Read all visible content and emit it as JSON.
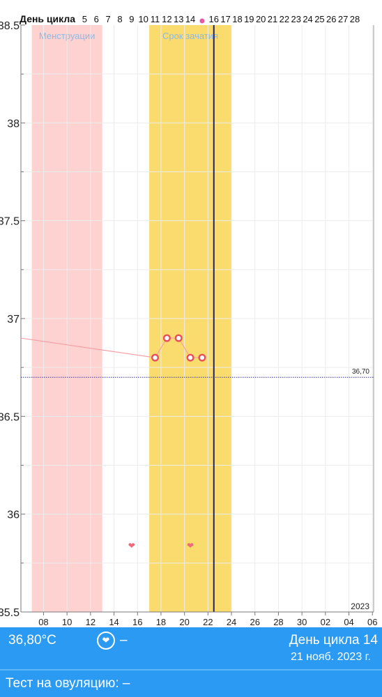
{
  "chart_data": {
    "type": "line",
    "cycle_header": {
      "label": "День цикла",
      "days": [
        "5",
        "6",
        "7",
        "8",
        "9",
        "10",
        "11",
        "12",
        "13",
        "14",
        "",
        "16",
        "17",
        "18",
        "19",
        "20",
        "21",
        "22",
        "23",
        "24",
        "25",
        "26",
        "27",
        "28"
      ]
    },
    "ylim": [
      35.5,
      38.5
    ],
    "y_ticks": [
      "35.5",
      "36",
      "36.5",
      "37",
      "37.5",
      "38",
      "38.5"
    ],
    "x_ticks": [
      "08",
      "10",
      "12",
      "14",
      "16",
      "18",
      "20",
      "22",
      "24",
      "26",
      "28",
      "30",
      "02",
      "04",
      "06"
    ],
    "x_axis_start": "2023-11-07",
    "year_label": "2023",
    "bands": [
      {
        "label": "Менструации",
        "from": "2023-11-07",
        "to": "2023-11-12",
        "color": "#ffd2d2"
      },
      {
        "label": "Срок зачатия",
        "from": "2023-11-17",
        "to": "2023-11-23",
        "color": "#fadb6e"
      }
    ],
    "coverline": {
      "value": 36.7,
      "label": "36,70"
    },
    "series": [
      {
        "points": [
          {
            "date": "2023-11-17",
            "y": 36.8
          },
          {
            "date": "2023-11-18",
            "y": 36.9
          },
          {
            "date": "2023-11-19",
            "y": 36.9
          },
          {
            "date": "2023-11-20",
            "y": 36.8
          },
          {
            "date": "2023-11-21",
            "y": 36.8
          }
        ]
      }
    ],
    "hearts": [
      {
        "date": "2023-11-15"
      },
      {
        "date": "2023-11-20"
      }
    ],
    "current_day": "2023-11-22",
    "grid": true
  },
  "footer": {
    "temperature": "36,80°C",
    "intercourse": "–",
    "cycle_day": "День цикла 14",
    "date": "21 нояб. 2023 г.",
    "ovulation_test": "Тест на овуляцию: –"
  },
  "icons": {
    "heart": "heart-icon",
    "ovulation_marker": "ovulation-dot-icon"
  }
}
